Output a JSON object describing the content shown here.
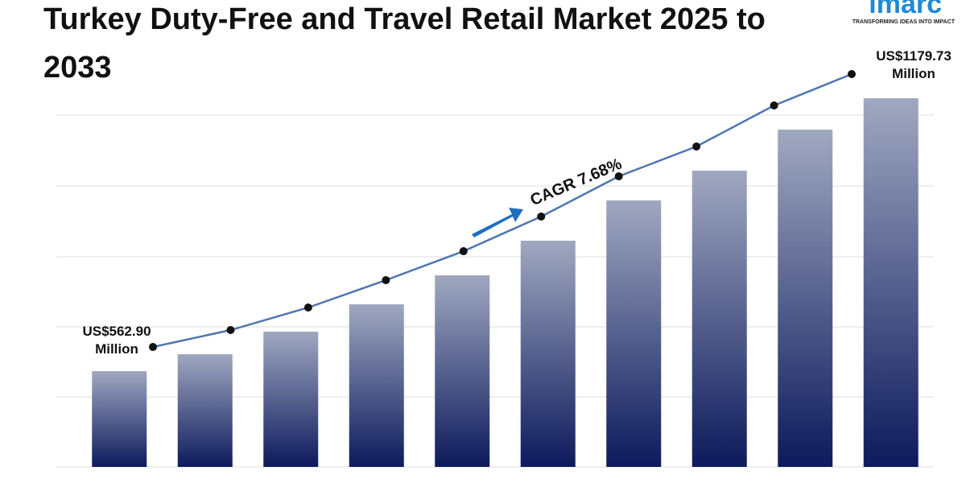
{
  "chart_data": {
    "type": "bar",
    "title": "Turkey Duty-Free and Travel Retail Market 2025 to 2033",
    "categories": [
      null,
      null,
      null,
      null,
      null,
      null,
      null,
      null,
      null,
      null
    ],
    "values": [
      562.9,
      601.1,
      652.1,
      713.9,
      779.4,
      857.7,
      948.7,
      1016.0,
      1108.8,
      1179.73
    ],
    "value_labels": [
      "US$562.90 Million",
      null,
      null,
      null,
      null,
      null,
      null,
      null,
      null,
      "US$1179.73 Million"
    ],
    "color": "#0d1a5c",
    "gradient_top": "#a0a8c0",
    "line_color": "#4f76b0",
    "ylim": [
      346.4,
      1238
    ],
    "grid": true,
    "annotation": "CAGR 7.68%"
  },
  "brand": {
    "name": "imarc",
    "tagline": "TRANSFORMING IDEAS INTO IMPACT"
  }
}
